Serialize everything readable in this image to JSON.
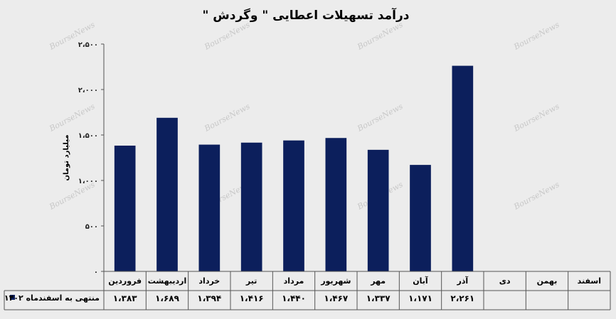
{
  "chart_data": {
    "type": "bar",
    "title": "درآمد تسهیلات اعطایی \" وگردش \"",
    "ylabel": "میلیارد تومان",
    "categories": [
      "فروردین",
      "اردیبهشت",
      "خرداد",
      "تیر",
      "مرداد",
      "شهریور",
      "مهر",
      "آبان",
      "آذر",
      "دی",
      "بهمن",
      "اسفند"
    ],
    "series": [
      {
        "name": "منتهی به اسفندماه ۱۴۰۲",
        "values": [
          1383,
          1689,
          1394,
          1416,
          1440,
          1467,
          1337,
          1171,
          2261,
          null,
          null,
          null
        ],
        "labels": [
          "۱،۳۸۳",
          "۱،۶۸۹",
          "۱،۳۹۴",
          "۱،۴۱۶",
          "۱،۴۴۰",
          "۱،۴۶۷",
          "۱،۳۳۷",
          "۱،۱۷۱",
          "۲،۲۶۱",
          "",
          "",
          ""
        ],
        "color": "#0c1f5c"
      }
    ],
    "ylim": [
      0,
      2500
    ],
    "yticks": [
      0,
      500,
      1000,
      1500,
      2000,
      2500
    ],
    "ytick_labels": [
      "۰",
      "۵۰۰",
      "۱،۰۰۰",
      "۱،۵۰۰",
      "۲،۰۰۰",
      "۲،۵۰۰"
    ],
    "grid": false,
    "legend": "bottom-left",
    "watermark": "BourseNews"
  }
}
